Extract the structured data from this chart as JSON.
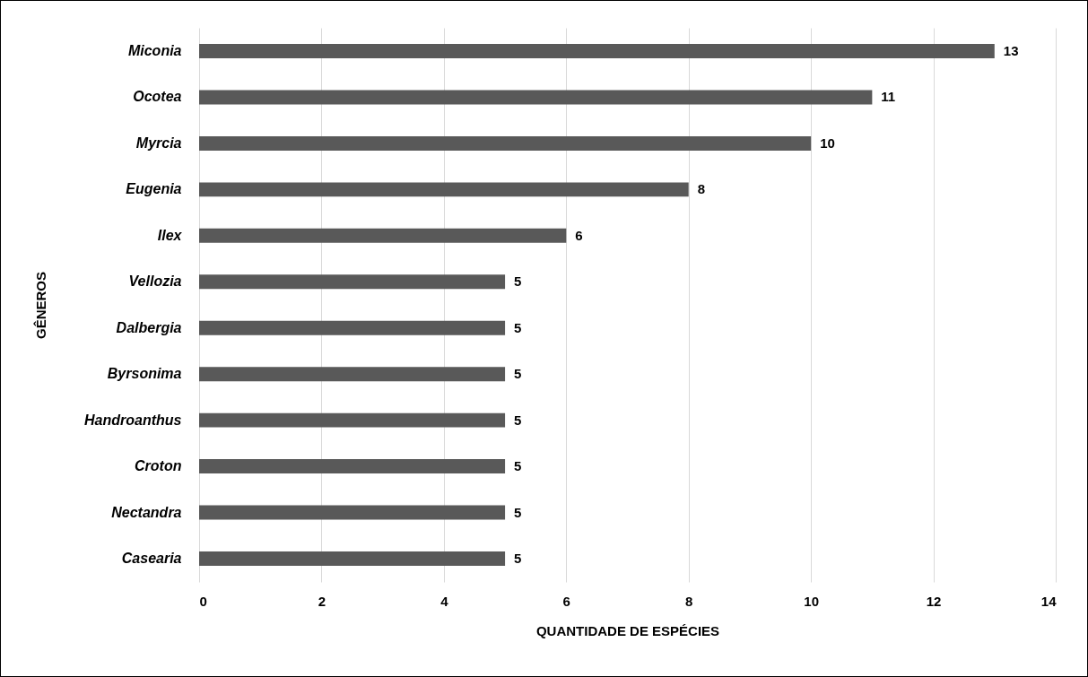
{
  "chart_data": {
    "type": "bar",
    "orientation": "horizontal",
    "xlabel": "QUANTIDADE DE ESPÉCIES",
    "ylabel": "GÊNEROS",
    "categories": [
      "Miconia",
      "Ocotea",
      "Myrcia",
      "Eugenia",
      "Ilex",
      "Vellozia",
      "Dalbergia",
      "Byrsonima",
      "Handroanthus",
      "Croton",
      "Nectandra",
      "Casearia"
    ],
    "values": [
      13,
      11,
      10,
      8,
      6,
      5,
      5,
      5,
      5,
      5,
      5,
      5
    ],
    "color": "#595959",
    "xlim": [
      0,
      14
    ],
    "xticks": [
      0,
      2,
      4,
      6,
      8,
      10,
      12,
      14
    ],
    "grid": "x",
    "data_labels": true
  }
}
